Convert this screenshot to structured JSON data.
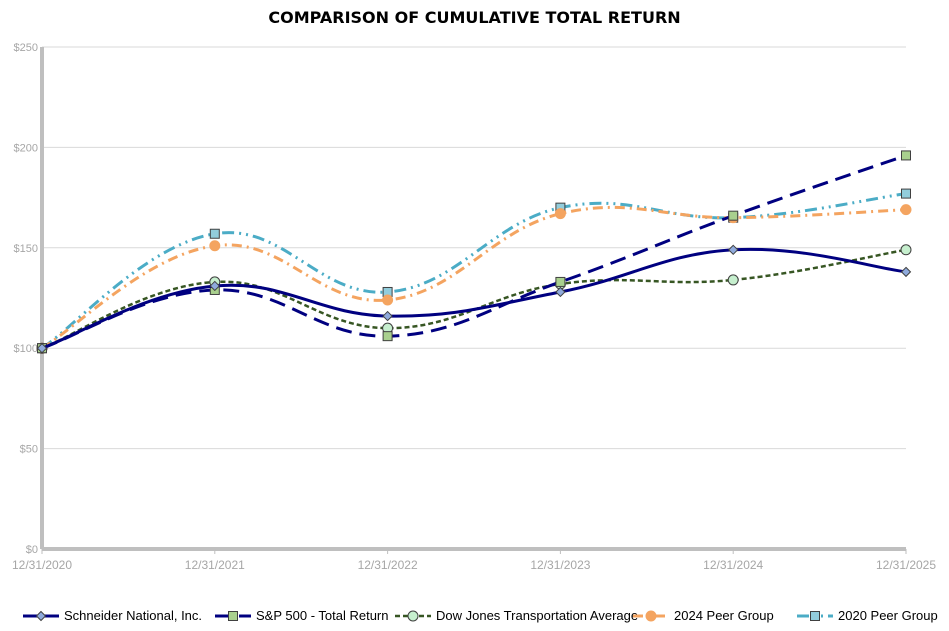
{
  "chart_data": {
    "type": "line",
    "title": "COMPARISON OF CUMULATIVE TOTAL RETURN",
    "xlabel": "",
    "ylabel": "",
    "categories": [
      "12/31/2020",
      "12/31/2021",
      "12/31/2022",
      "12/31/2023",
      "12/31/2024",
      "12/31/2025"
    ],
    "yticks": [
      "$0",
      "$50",
      "$100",
      "$150",
      "$200",
      "$250"
    ],
    "ylim": [
      0,
      250
    ],
    "grid": true,
    "legend_position": "bottom",
    "series": [
      {
        "name": "Schneider National, Inc.",
        "values": [
          100,
          131,
          116,
          128,
          149,
          138
        ],
        "color": "#000080",
        "dash": "solid",
        "marker": "diamond",
        "marker_fill": "#8faadc"
      },
      {
        "name": "S&P 500 - Total Return",
        "values": [
          100,
          129,
          106,
          133,
          166,
          196
        ],
        "color": "#000080",
        "dash": "long-dash",
        "marker": "square",
        "marker_fill": "#a9d08e"
      },
      {
        "name": "Dow Jones Transportation Average",
        "values": [
          100,
          133,
          110,
          132,
          134,
          149
        ],
        "color": "#375623",
        "dash": "short-dash",
        "marker": "circle",
        "marker_fill": "#c6efce"
      },
      {
        "name": "2024 Peer Group",
        "values": [
          100,
          151,
          124,
          167,
          165,
          169
        ],
        "color": "#f4a460",
        "dash": "dash-dot",
        "marker": "circle",
        "marker_fill": "#f4a460"
      },
      {
        "name": "2020 Peer Group",
        "values": [
          100,
          157,
          128,
          170,
          165,
          177
        ],
        "color": "#4bacc6",
        "dash": "dash-dot-dot",
        "marker": "square",
        "marker_fill": "#92cddc"
      }
    ]
  }
}
